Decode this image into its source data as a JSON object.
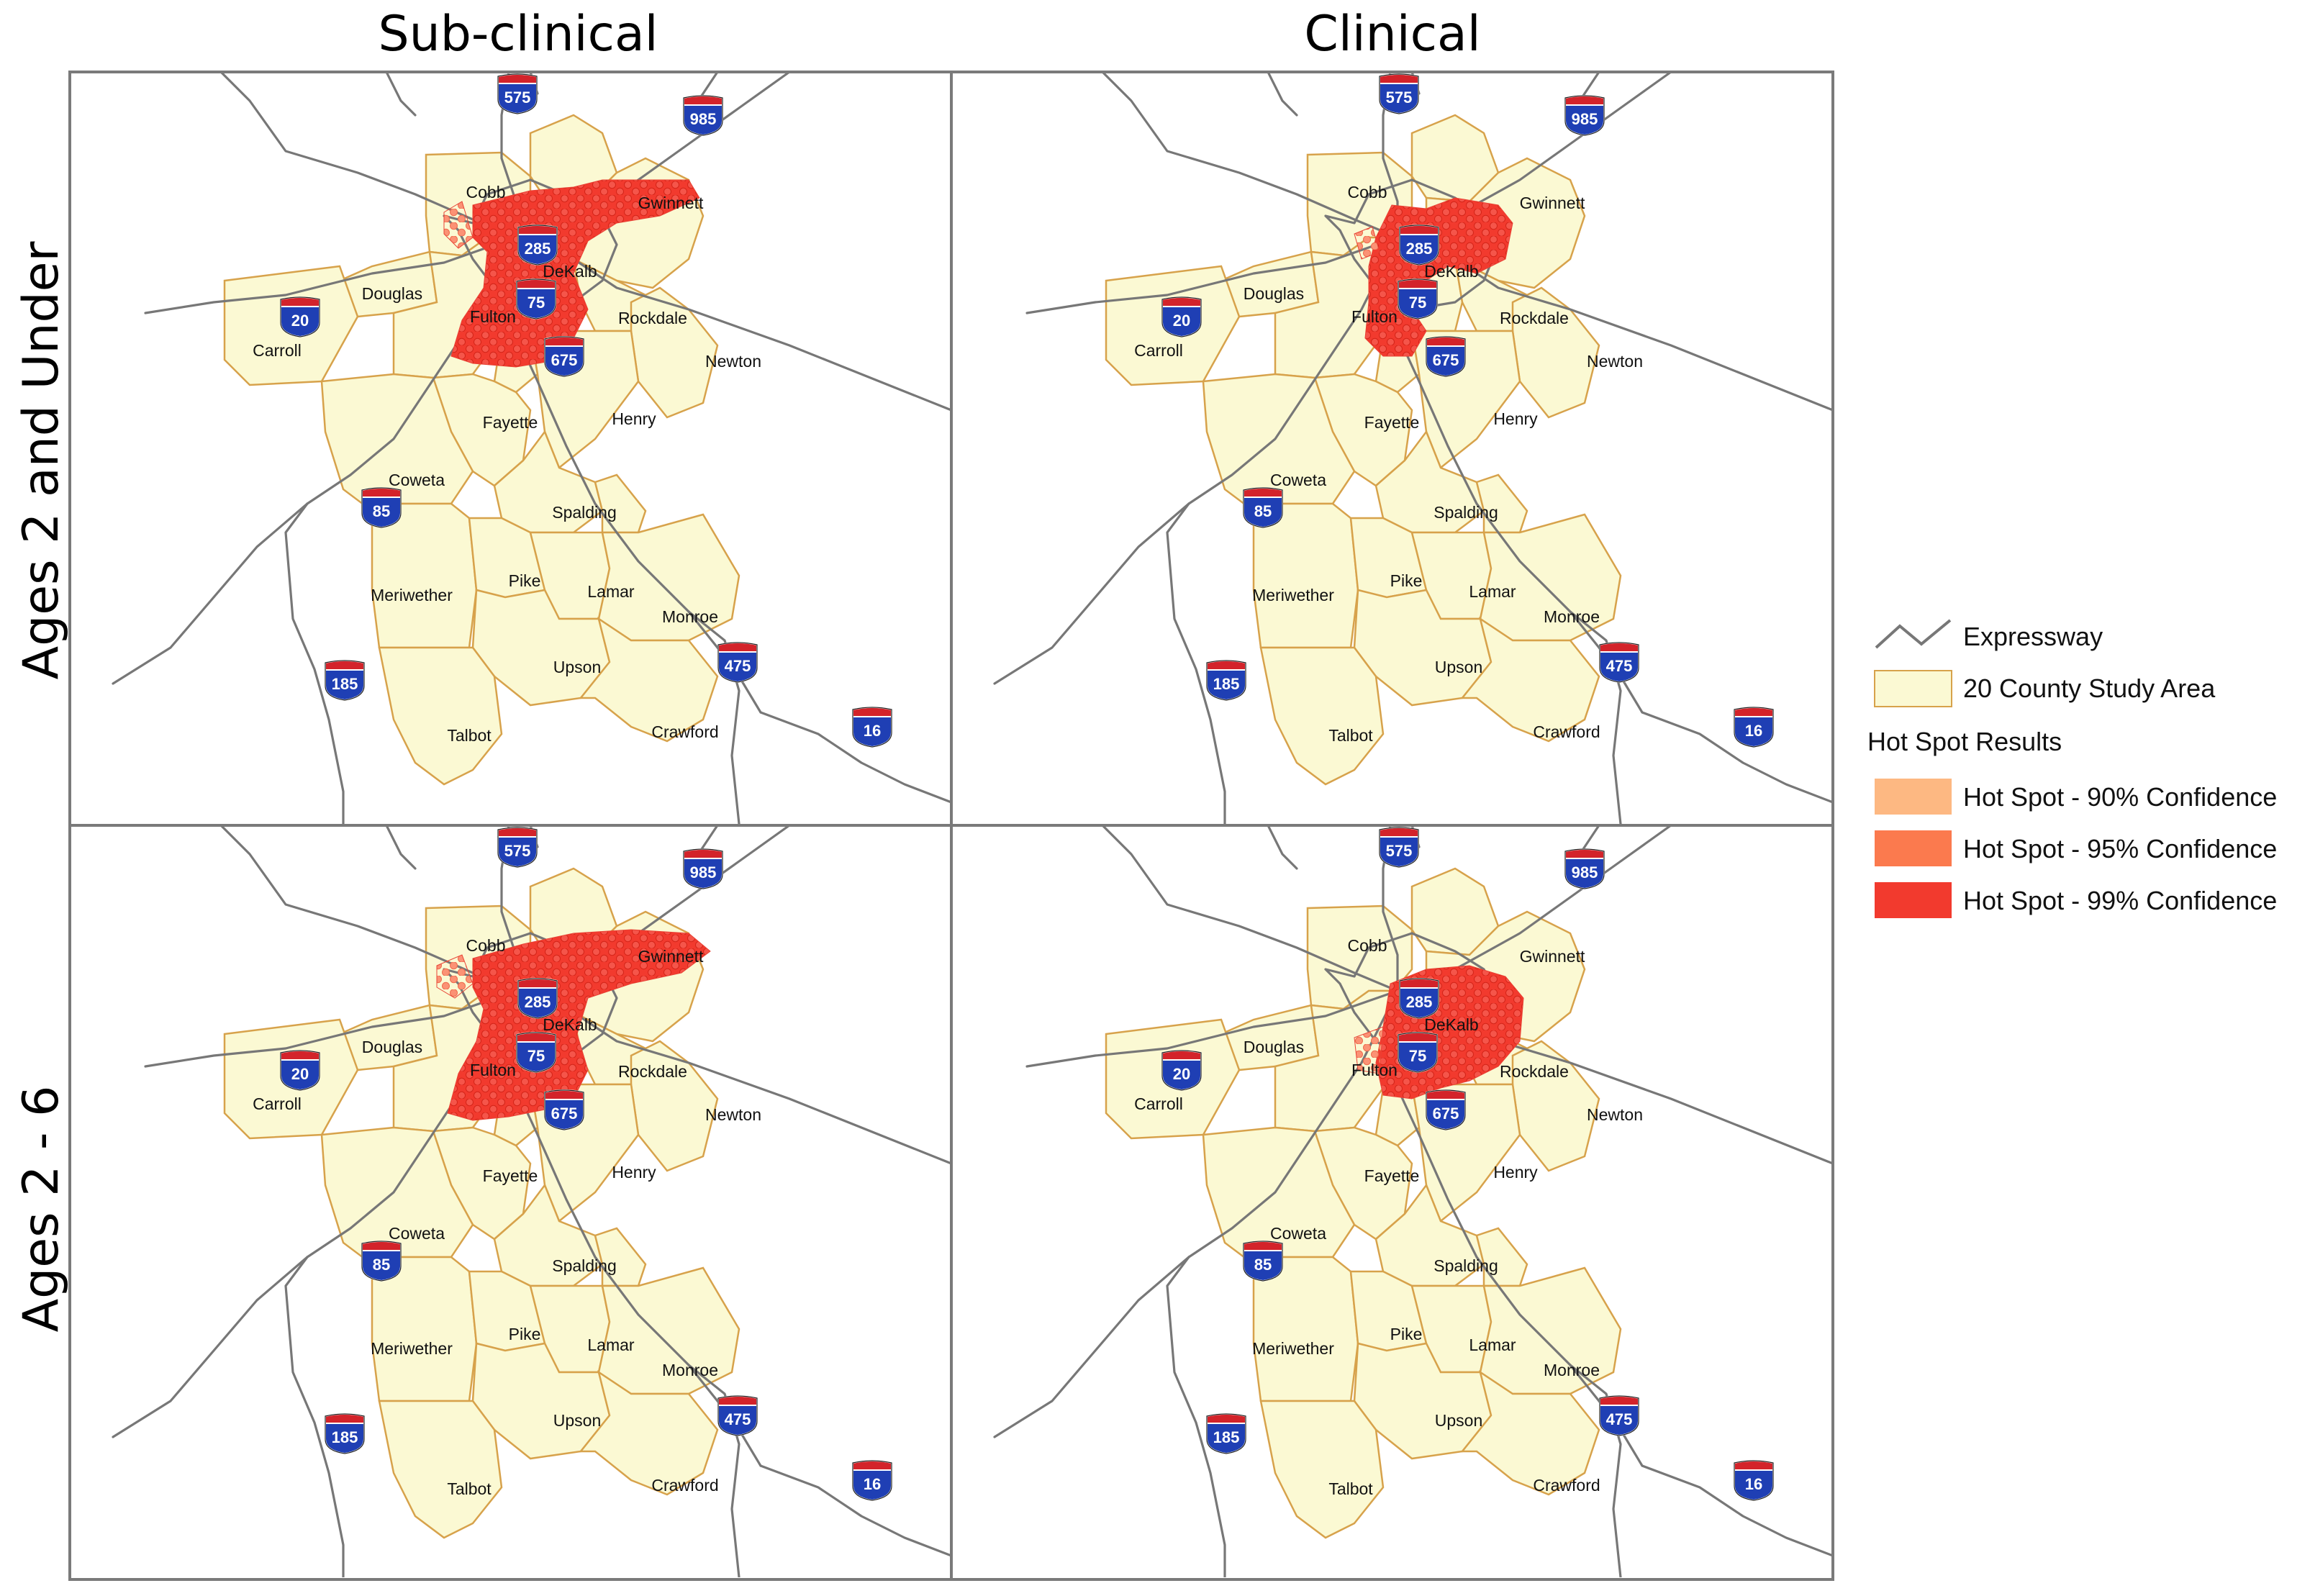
{
  "column_titles": [
    "Sub-clinical",
    "Clinical"
  ],
  "row_titles": [
    "Ages 2 and Under",
    "Ages 2 - 6"
  ],
  "counties": [
    "Cobb",
    "Gwinnett",
    "DeKalb",
    "Douglas",
    "Fulton",
    "Rockdale",
    "Carroll",
    "Newton",
    "Fayette",
    "Henry",
    "Coweta",
    "Spalding",
    "Meriwether",
    "Pike",
    "Lamar",
    "Monroe",
    "Upson",
    "Talbot",
    "Crawford"
  ],
  "interstates": [
    "575",
    "985",
    "285",
    "75",
    "20",
    "675",
    "85",
    "185",
    "475",
    "16"
  ],
  "legend": {
    "expressway": "Expressway",
    "study_area": "20 County Study Area",
    "results_title": "Hot Spot Results",
    "items": [
      {
        "label": "Hot Spot - 90% Confidence",
        "color": "#fdb882"
      },
      {
        "label": "Hot Spot - 95% Confidence",
        "color": "#fb7a4e"
      },
      {
        "label": "Hot Spot - 99% Confidence",
        "color": "#f23a2e"
      }
    ]
  },
  "colors": {
    "county_fill": "#fbf9d3",
    "county_stroke": "#d7a24b",
    "road": "#777777",
    "shield_blue": "#1f3fb4",
    "shield_red": "#d3232a",
    "frame": "#7a7a7a"
  },
  "panels": [
    {
      "id": "sub-under2",
      "hotspot": "Sub-clinical, Ages 2 and Under"
    },
    {
      "id": "clin-under2",
      "hotspot": "Clinical, Ages 2 and Under"
    },
    {
      "id": "sub-2to6",
      "hotspot": "Sub-clinical, Ages 2 - 6"
    },
    {
      "id": "clin-2to6",
      "hotspot": "Clinical, Ages 2 - 6"
    }
  ]
}
